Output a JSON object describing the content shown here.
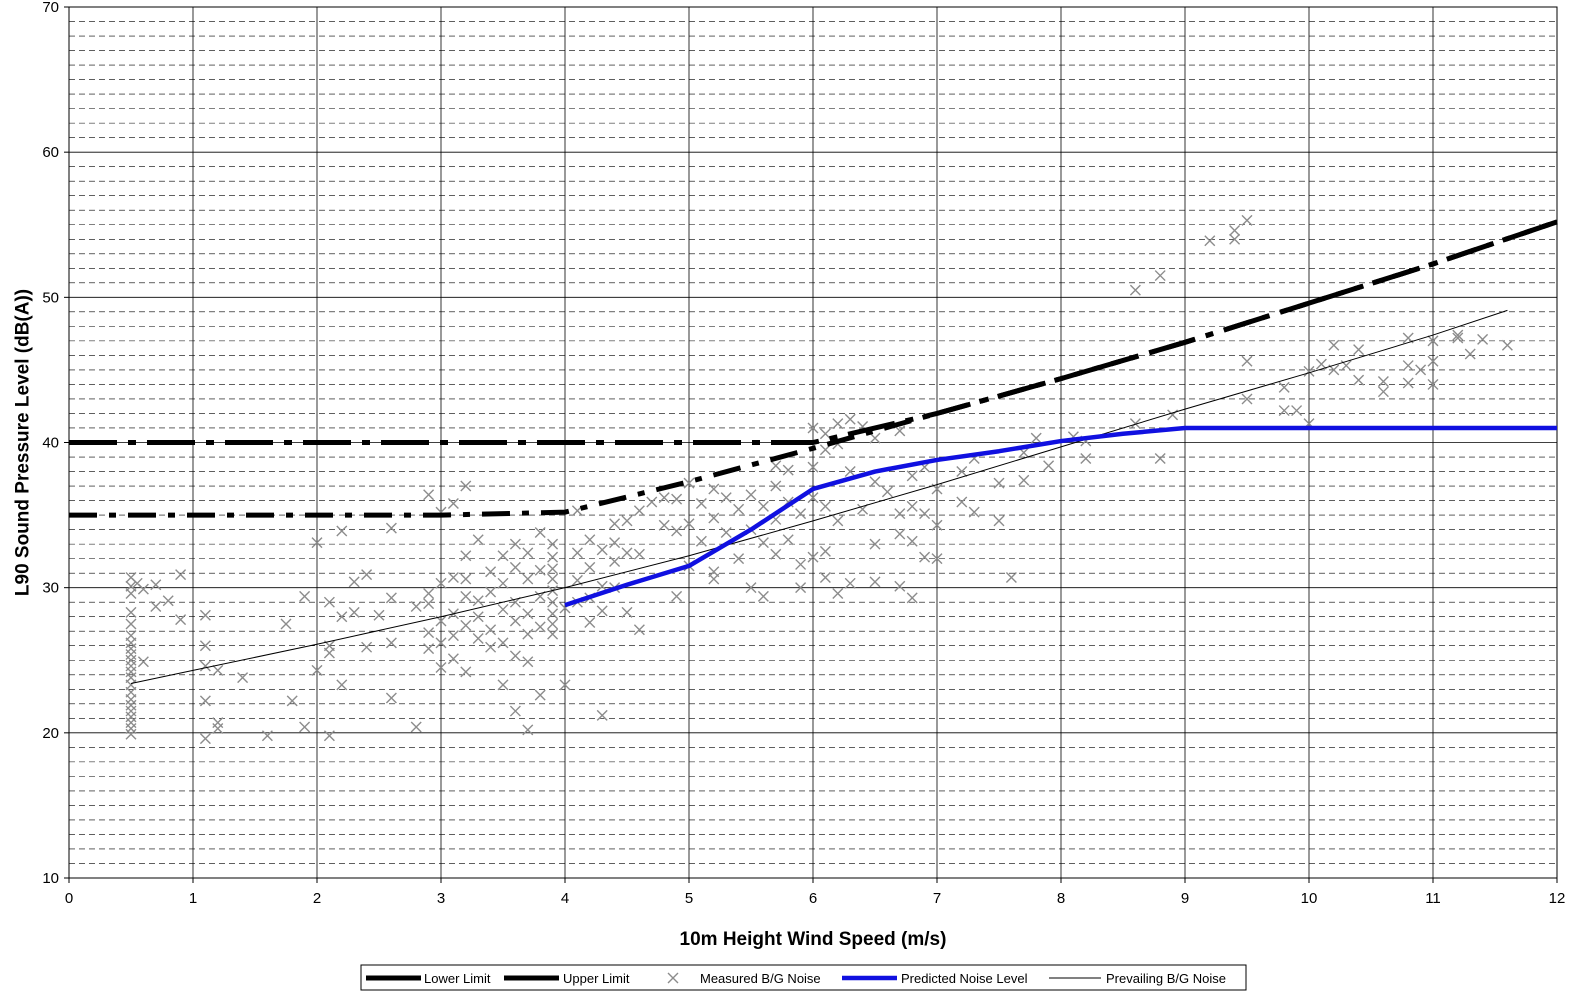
{
  "chart_data": {
    "type": "scatter",
    "title": "",
    "xlabel": "10m Height Wind Speed (m/s)",
    "ylabel": "L90 Sound Pressure Level (dB(A))",
    "xlim": [
      0,
      12
    ],
    "ylim": [
      10,
      70
    ],
    "x_ticks": [
      "0",
      "1",
      "2",
      "3",
      "4",
      "5",
      "6",
      "7",
      "8",
      "9",
      "10",
      "11",
      "12"
    ],
    "y_ticks": [
      "10",
      "20",
      "30",
      "40",
      "50",
      "60",
      "70"
    ],
    "grid": {
      "major": true,
      "minor_y_step": 1
    },
    "legend_position": "bottom",
    "colors": {
      "limits": "#000000",
      "measured": "#8c8c8c",
      "predicted": "#1010e0",
      "prevailing": "#000000"
    },
    "series": [
      {
        "name": "Lower Limit",
        "kind": "line",
        "style": "dash-dot-bold",
        "x": [
          0,
          1,
          2,
          3,
          4,
          5,
          6,
          7,
          8,
          9,
          10,
          11,
          12
        ],
        "y": [
          35,
          35,
          35,
          35,
          35.2,
          37.3,
          39.6,
          42.0,
          44.4,
          46.9,
          49.6,
          52.3,
          55.2
        ]
      },
      {
        "name": "Upper Limit",
        "kind": "line",
        "style": "dash-bold",
        "x": [
          0,
          1,
          2,
          3,
          4,
          5,
          5.8,
          6,
          7,
          8,
          9,
          10,
          11,
          12
        ],
        "y": [
          40,
          40,
          40,
          40,
          40,
          40,
          40,
          40,
          42.0,
          44.4,
          46.9,
          49.6,
          52.3,
          55.2
        ]
      },
      {
        "name": "Measured B/G Noise",
        "kind": "scatter",
        "points": [
          [
            0.5,
            30.7
          ],
          [
            0.5,
            30.1
          ],
          [
            0.5,
            29.6
          ],
          [
            0.5,
            28.3
          ],
          [
            0.5,
            27.5
          ],
          [
            0.5,
            26.7
          ],
          [
            0.5,
            26.2
          ],
          [
            0.5,
            25.8
          ],
          [
            0.5,
            25.4
          ],
          [
            0.5,
            25.0
          ],
          [
            0.5,
            24.6
          ],
          [
            0.5,
            24.2
          ],
          [
            0.5,
            23.8
          ],
          [
            0.5,
            23.3
          ],
          [
            0.5,
            22.8
          ],
          [
            0.5,
            22.3
          ],
          [
            0.5,
            21.9
          ],
          [
            0.5,
            21.5
          ],
          [
            0.5,
            21.1
          ],
          [
            0.5,
            20.7
          ],
          [
            0.5,
            20.3
          ],
          [
            0.5,
            19.9
          ],
          [
            0.55,
            30.3
          ],
          [
            0.6,
            29.9
          ],
          [
            0.6,
            24.9
          ],
          [
            0.7,
            30.2
          ],
          [
            0.7,
            28.7
          ],
          [
            0.8,
            29.1
          ],
          [
            0.9,
            30.9
          ],
          [
            0.9,
            27.8
          ],
          [
            1.1,
            28.1
          ],
          [
            1.1,
            26.0
          ],
          [
            1.1,
            24.6
          ],
          [
            1.1,
            22.2
          ],
          [
            1.1,
            19.6
          ],
          [
            1.2,
            20.3
          ],
          [
            1.2,
            20.7
          ],
          [
            1.2,
            24.3
          ],
          [
            1.4,
            23.8
          ],
          [
            1.6,
            19.8
          ],
          [
            1.75,
            27.5
          ],
          [
            1.8,
            22.2
          ],
          [
            1.9,
            29.4
          ],
          [
            1.9,
            20.4
          ],
          [
            2.0,
            33.1
          ],
          [
            2.0,
            24.3
          ],
          [
            2.1,
            29.0
          ],
          [
            2.1,
            26.0
          ],
          [
            2.1,
            25.5
          ],
          [
            2.1,
            19.8
          ],
          [
            2.2,
            33.9
          ],
          [
            2.2,
            28.0
          ],
          [
            2.2,
            23.3
          ],
          [
            2.3,
            30.4
          ],
          [
            2.3,
            28.3
          ],
          [
            2.4,
            30.9
          ],
          [
            2.4,
            25.9
          ],
          [
            2.5,
            28.1
          ],
          [
            2.6,
            34.1
          ],
          [
            2.6,
            29.3
          ],
          [
            2.6,
            26.2
          ],
          [
            2.6,
            22.4
          ],
          [
            2.8,
            20.4
          ],
          [
            2.8,
            28.7
          ],
          [
            2.9,
            36.4
          ],
          [
            2.9,
            29.6
          ],
          [
            2.9,
            28.9
          ],
          [
            2.9,
            26.9
          ],
          [
            2.9,
            25.8
          ],
          [
            3.0,
            35.2
          ],
          [
            3.0,
            30.3
          ],
          [
            3.0,
            27.7
          ],
          [
            3.0,
            24.5
          ],
          [
            3.0,
            26.2
          ],
          [
            3.1,
            35.8
          ],
          [
            3.1,
            30.7
          ],
          [
            3.1,
            28.2
          ],
          [
            3.1,
            26.7
          ],
          [
            3.1,
            25.1
          ],
          [
            3.2,
            37.0
          ],
          [
            3.2,
            32.2
          ],
          [
            3.2,
            29.4
          ],
          [
            3.2,
            30.6
          ],
          [
            3.2,
            27.4
          ],
          [
            3.2,
            24.2
          ],
          [
            3.3,
            33.3
          ],
          [
            3.3,
            29.1
          ],
          [
            3.3,
            28.0
          ],
          [
            3.3,
            26.5
          ],
          [
            3.4,
            31.1
          ],
          [
            3.4,
            29.7
          ],
          [
            3.4,
            27.1
          ],
          [
            3.4,
            25.9
          ],
          [
            3.5,
            32.2
          ],
          [
            3.5,
            30.3
          ],
          [
            3.5,
            28.5
          ],
          [
            3.5,
            26.2
          ],
          [
            3.5,
            23.3
          ],
          [
            3.6,
            33.0
          ],
          [
            3.6,
            31.4
          ],
          [
            3.6,
            29.0
          ],
          [
            3.6,
            27.7
          ],
          [
            3.6,
            25.3
          ],
          [
            3.6,
            21.5
          ],
          [
            3.7,
            32.4
          ],
          [
            3.7,
            30.6
          ],
          [
            3.7,
            28.2
          ],
          [
            3.7,
            26.8
          ],
          [
            3.7,
            24.9
          ],
          [
            3.7,
            20.2
          ],
          [
            3.8,
            33.8
          ],
          [
            3.8,
            31.2
          ],
          [
            3.8,
            29.4
          ],
          [
            3.8,
            27.3
          ],
          [
            3.8,
            22.6
          ],
          [
            3.9,
            33.0
          ],
          [
            3.9,
            32.1
          ],
          [
            3.9,
            31.3
          ],
          [
            3.9,
            30.6
          ],
          [
            3.9,
            29.8
          ],
          [
            3.9,
            29.0
          ],
          [
            3.9,
            28.2
          ],
          [
            3.9,
            27.5
          ],
          [
            3.9,
            26.8
          ],
          [
            4.0,
            28.6
          ],
          [
            4.0,
            23.3
          ],
          [
            4.1,
            35.3
          ],
          [
            4.1,
            32.4
          ],
          [
            4.1,
            30.5
          ],
          [
            4.1,
            29.0
          ],
          [
            4.2,
            33.3
          ],
          [
            4.2,
            31.4
          ],
          [
            4.2,
            29.3
          ],
          [
            4.2,
            27.6
          ],
          [
            4.3,
            32.6
          ],
          [
            4.3,
            30.1
          ],
          [
            4.3,
            28.4
          ],
          [
            4.3,
            21.2
          ],
          [
            4.4,
            34.4
          ],
          [
            4.4,
            33.1
          ],
          [
            4.4,
            31.8
          ],
          [
            4.4,
            30.0
          ],
          [
            4.5,
            34.6
          ],
          [
            4.5,
            32.4
          ],
          [
            4.5,
            28.3
          ],
          [
            4.6,
            35.3
          ],
          [
            4.6,
            32.3
          ],
          [
            4.6,
            27.1
          ],
          [
            4.7,
            35.9
          ],
          [
            4.8,
            36.2
          ],
          [
            4.8,
            34.3
          ],
          [
            4.9,
            36.1
          ],
          [
            4.9,
            33.9
          ],
          [
            4.9,
            29.4
          ],
          [
            5.0,
            37.2
          ],
          [
            5.0,
            34.4
          ],
          [
            5.0,
            31.5
          ],
          [
            5.1,
            35.8
          ],
          [
            5.1,
            33.2
          ],
          [
            5.2,
            36.8
          ],
          [
            5.2,
            34.8
          ],
          [
            5.2,
            31.1
          ],
          [
            5.2,
            30.6
          ],
          [
            5.3,
            36.2
          ],
          [
            5.3,
            33.8
          ],
          [
            5.4,
            35.4
          ],
          [
            5.4,
            32.0
          ],
          [
            5.5,
            36.4
          ],
          [
            5.5,
            34.0
          ],
          [
            5.5,
            30.0
          ],
          [
            5.6,
            35.6
          ],
          [
            5.6,
            33.1
          ],
          [
            5.6,
            29.4
          ],
          [
            5.7,
            38.4
          ],
          [
            5.7,
            37.0
          ],
          [
            5.7,
            34.7
          ],
          [
            5.7,
            32.3
          ],
          [
            5.8,
            38.1
          ],
          [
            5.8,
            35.9
          ],
          [
            5.8,
            33.3
          ],
          [
            5.9,
            35.1
          ],
          [
            5.9,
            31.6
          ],
          [
            5.9,
            30.0
          ],
          [
            6.0,
            41.0
          ],
          [
            6.0,
            38.3
          ],
          [
            6.0,
            36.2
          ],
          [
            6.0,
            32.1
          ],
          [
            6.1,
            40.6
          ],
          [
            6.1,
            39.5
          ],
          [
            6.1,
            35.6
          ],
          [
            6.1,
            32.5
          ],
          [
            6.1,
            30.7
          ],
          [
            6.2,
            41.3
          ],
          [
            6.2,
            39.9
          ],
          [
            6.2,
            34.6
          ],
          [
            6.2,
            29.6
          ],
          [
            6.3,
            41.6
          ],
          [
            6.3,
            38.0
          ],
          [
            6.3,
            30.3
          ],
          [
            6.4,
            41.1
          ],
          [
            6.4,
            35.4
          ],
          [
            6.5,
            40.3
          ],
          [
            6.5,
            37.3
          ],
          [
            6.5,
            33.0
          ],
          [
            6.5,
            30.4
          ],
          [
            6.6,
            36.6
          ],
          [
            6.7,
            40.8
          ],
          [
            6.7,
            35.1
          ],
          [
            6.7,
            33.7
          ],
          [
            6.7,
            30.1
          ],
          [
            6.8,
            37.7
          ],
          [
            6.8,
            35.6
          ],
          [
            6.8,
            33.2
          ],
          [
            6.8,
            29.3
          ],
          [
            6.9,
            38.3
          ],
          [
            6.9,
            35.1
          ],
          [
            6.9,
            32.1
          ],
          [
            7.0,
            36.8
          ],
          [
            7.0,
            34.3
          ],
          [
            7.0,
            32.0
          ],
          [
            7.2,
            38.0
          ],
          [
            7.2,
            35.9
          ],
          [
            7.3,
            38.9
          ],
          [
            7.3,
            35.2
          ],
          [
            7.5,
            37.2
          ],
          [
            7.5,
            34.6
          ],
          [
            7.6,
            30.7
          ],
          [
            7.7,
            39.3
          ],
          [
            7.7,
            37.4
          ],
          [
            7.8,
            40.3
          ],
          [
            7.9,
            38.4
          ],
          [
            8.1,
            40.4
          ],
          [
            8.2,
            40.1
          ],
          [
            8.2,
            38.9
          ],
          [
            8.6,
            41.3
          ],
          [
            8.6,
            50.5
          ],
          [
            8.8,
            51.5
          ],
          [
            8.8,
            38.9
          ],
          [
            8.9,
            41.9
          ],
          [
            9.2,
            53.9
          ],
          [
            9.4,
            54.0
          ],
          [
            9.4,
            54.6
          ],
          [
            9.5,
            55.3
          ],
          [
            9.5,
            45.6
          ],
          [
            9.5,
            43.0
          ],
          [
            9.8,
            43.8
          ],
          [
            9.8,
            42.2
          ],
          [
            9.9,
            42.2
          ],
          [
            10.0,
            44.9
          ],
          [
            10.0,
            41.3
          ],
          [
            10.1,
            45.4
          ],
          [
            10.2,
            46.7
          ],
          [
            10.2,
            45.0
          ],
          [
            10.3,
            45.3
          ],
          [
            10.4,
            46.4
          ],
          [
            10.4,
            44.3
          ],
          [
            10.6,
            44.2
          ],
          [
            10.6,
            43.5
          ],
          [
            10.8,
            47.2
          ],
          [
            10.8,
            45.3
          ],
          [
            10.8,
            44.1
          ],
          [
            10.9,
            45.0
          ],
          [
            11.0,
            45.6
          ],
          [
            11.0,
            44.0
          ],
          [
            11.0,
            47.0
          ],
          [
            11.2,
            47.2
          ],
          [
            11.2,
            47.4
          ],
          [
            11.3,
            46.1
          ],
          [
            11.4,
            47.1
          ],
          [
            11.6,
            46.7
          ]
        ]
      },
      {
        "name": "Predicted Noise Level",
        "kind": "line",
        "style": "solid-bold",
        "x": [
          4,
          4.5,
          5,
          5.5,
          6,
          6.5,
          7,
          7.5,
          8,
          8.5,
          9,
          10,
          11,
          12
        ],
        "y": [
          28.8,
          30.2,
          31.5,
          34.0,
          36.8,
          38.0,
          38.8,
          39.4,
          40.1,
          40.6,
          41.0,
          41.0,
          41.0,
          41.0
        ]
      },
      {
        "name": "Prevailing B/G Noise",
        "kind": "line",
        "style": "solid-thin",
        "x": [
          0.5,
          1,
          2,
          3,
          4,
          5,
          6,
          7,
          8,
          9,
          10,
          11,
          11.6
        ],
        "y": [
          23.4,
          24.3,
          26.1,
          28.0,
          30.0,
          32.2,
          34.6,
          37.1,
          39.7,
          42.3,
          44.8,
          47.4,
          49.1
        ]
      }
    ]
  }
}
